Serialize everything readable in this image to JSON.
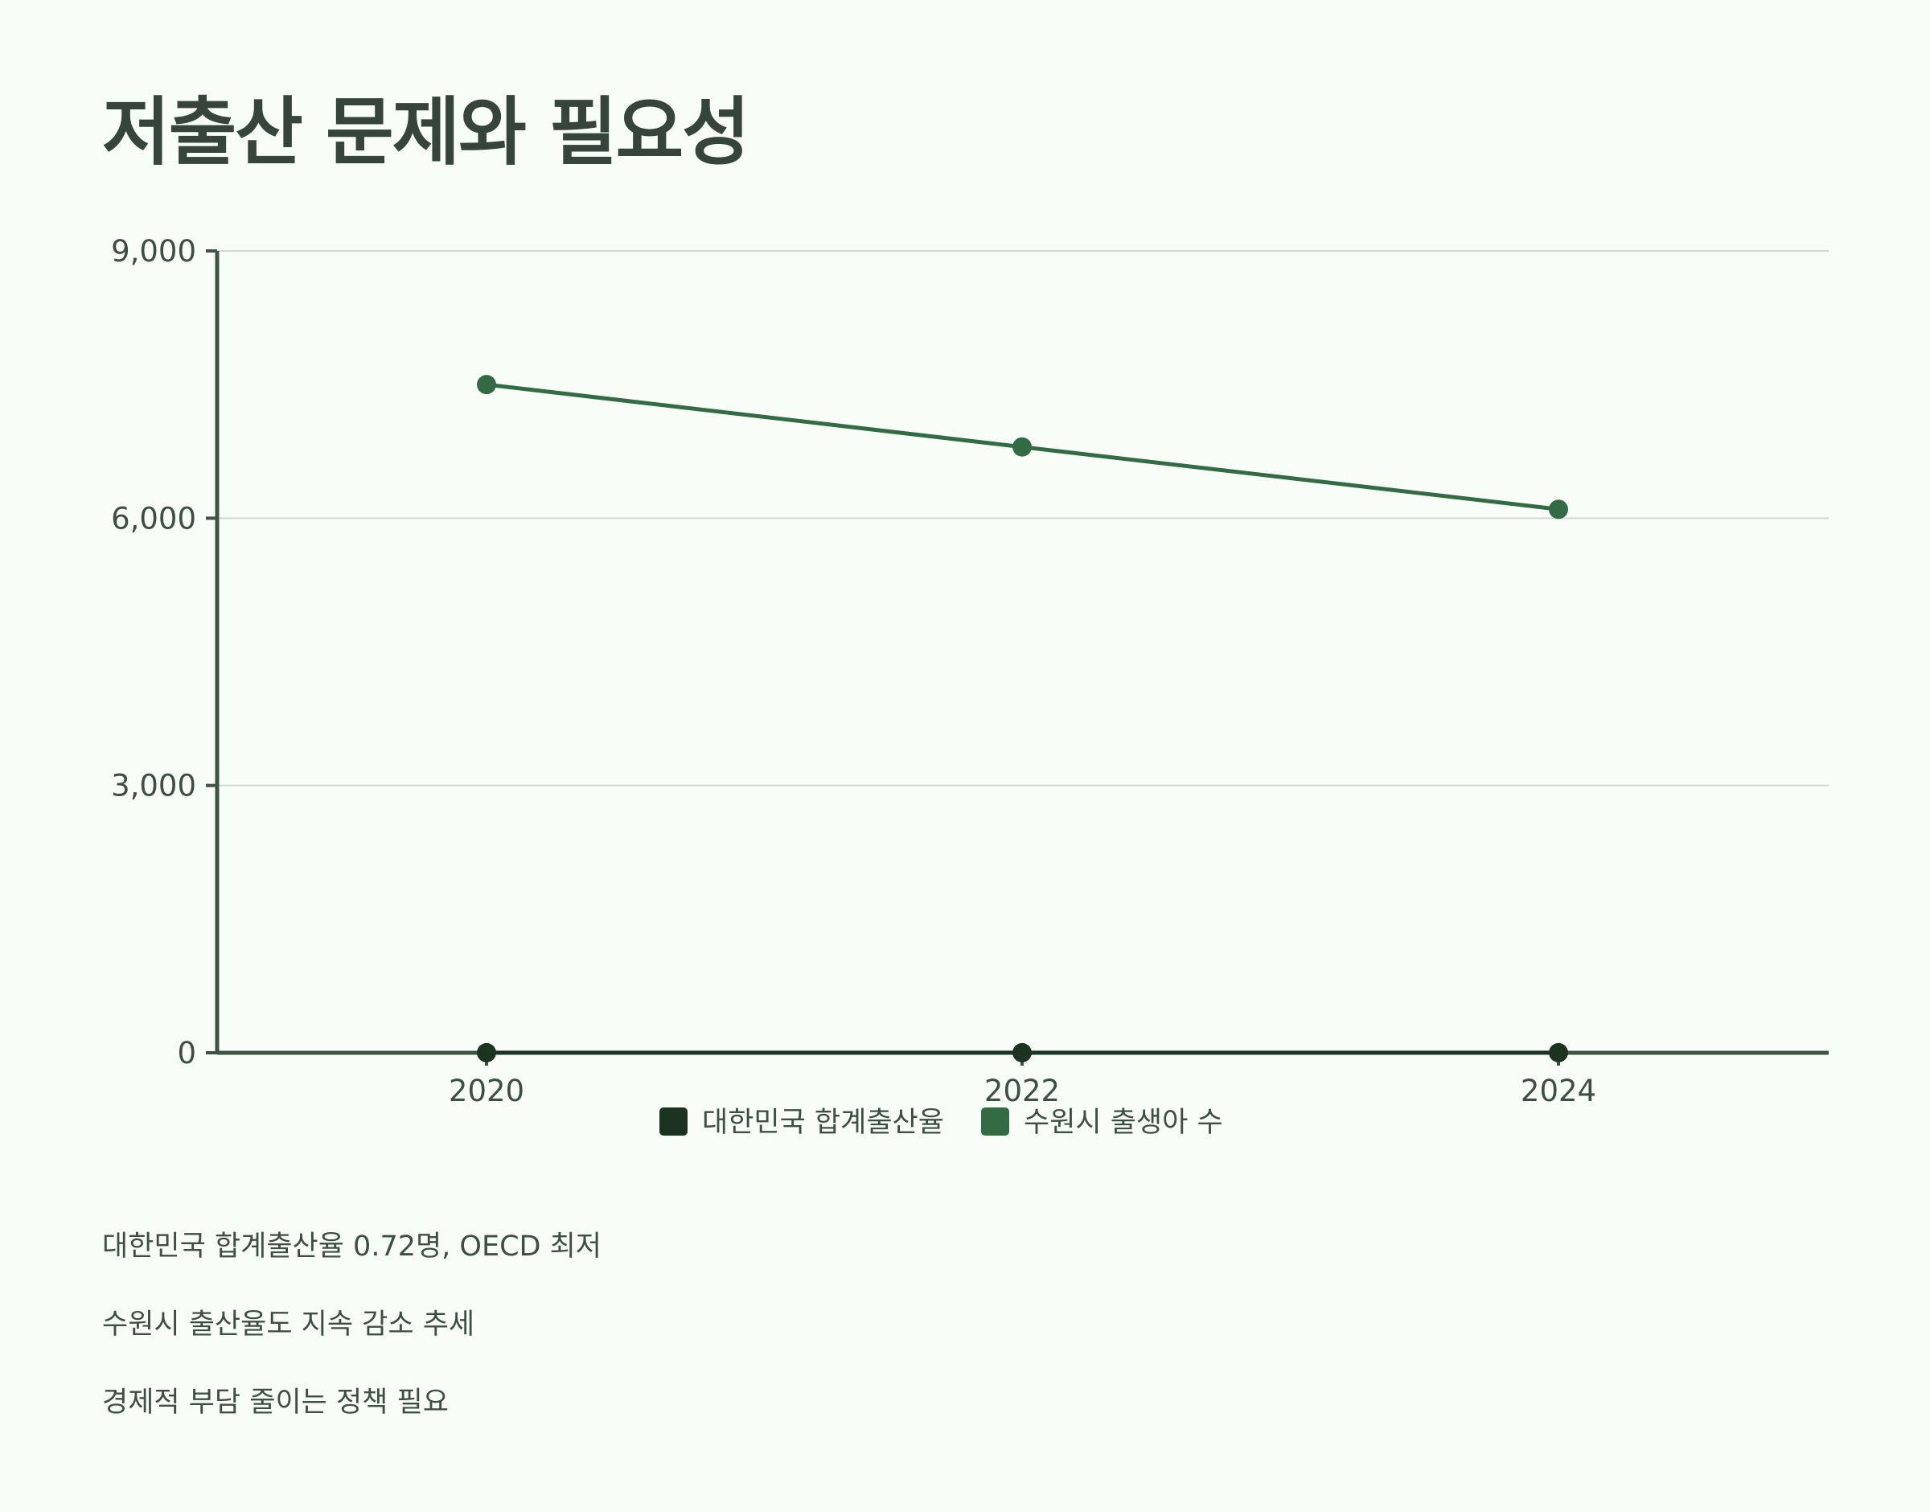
{
  "title": "저출산 문제와 필요성",
  "chart_data": {
    "type": "line",
    "x": [
      "2020",
      "2022",
      "2024"
    ],
    "series": [
      {
        "name": "대한민국 합계출산율",
        "values": [
          0.84,
          0.78,
          0.72
        ],
        "color": "#1b3320"
      },
      {
        "name": "수원시 출생아 수",
        "values": [
          7500,
          6800,
          6100
        ],
        "color": "#336b45"
      }
    ],
    "y_ticks": [
      "0",
      "3,000",
      "6,000",
      "9,000"
    ],
    "ylim": [
      0,
      9000
    ],
    "grid": true,
    "legend": "bottom-center"
  },
  "bullets": [
    "대한민국 합계출산율 0.72명, OECD 최저",
    "수원시 출산율도 지속 감소 추세",
    "경제적 부담 줄이는 정책 필요"
  ]
}
